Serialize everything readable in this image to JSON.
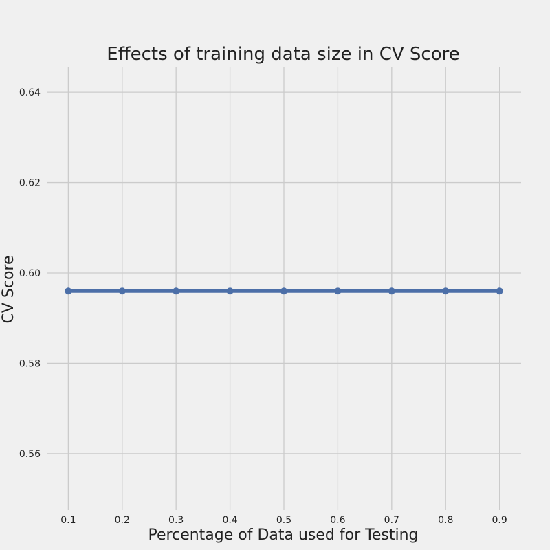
{
  "chart_data": {
    "type": "line",
    "title": "Effects of training data size in CV Score",
    "xlabel": "Percentage of Data used for Testing",
    "ylabel": "CV Score",
    "x": [
      0.1,
      0.2,
      0.3,
      0.4,
      0.5,
      0.6,
      0.7,
      0.8,
      0.9
    ],
    "series": [
      {
        "values": [
          0.596,
          0.596,
          0.596,
          0.596,
          0.596,
          0.596,
          0.596,
          0.596,
          0.596
        ]
      }
    ],
    "xticks": [
      "0.1",
      "0.2",
      "0.3",
      "0.4",
      "0.5",
      "0.6",
      "0.7",
      "0.8",
      "0.9"
    ],
    "yticks": [
      "0.56",
      "0.58",
      "0.60",
      "0.62",
      "0.64"
    ],
    "xlim": [
      0.06,
      0.94
    ],
    "ylim": [
      0.5475,
      0.6455
    ],
    "grid": true,
    "colors": {
      "line": "#4c6fa8",
      "background": "#f0f0f0",
      "grid": "#cbcbcb"
    }
  }
}
